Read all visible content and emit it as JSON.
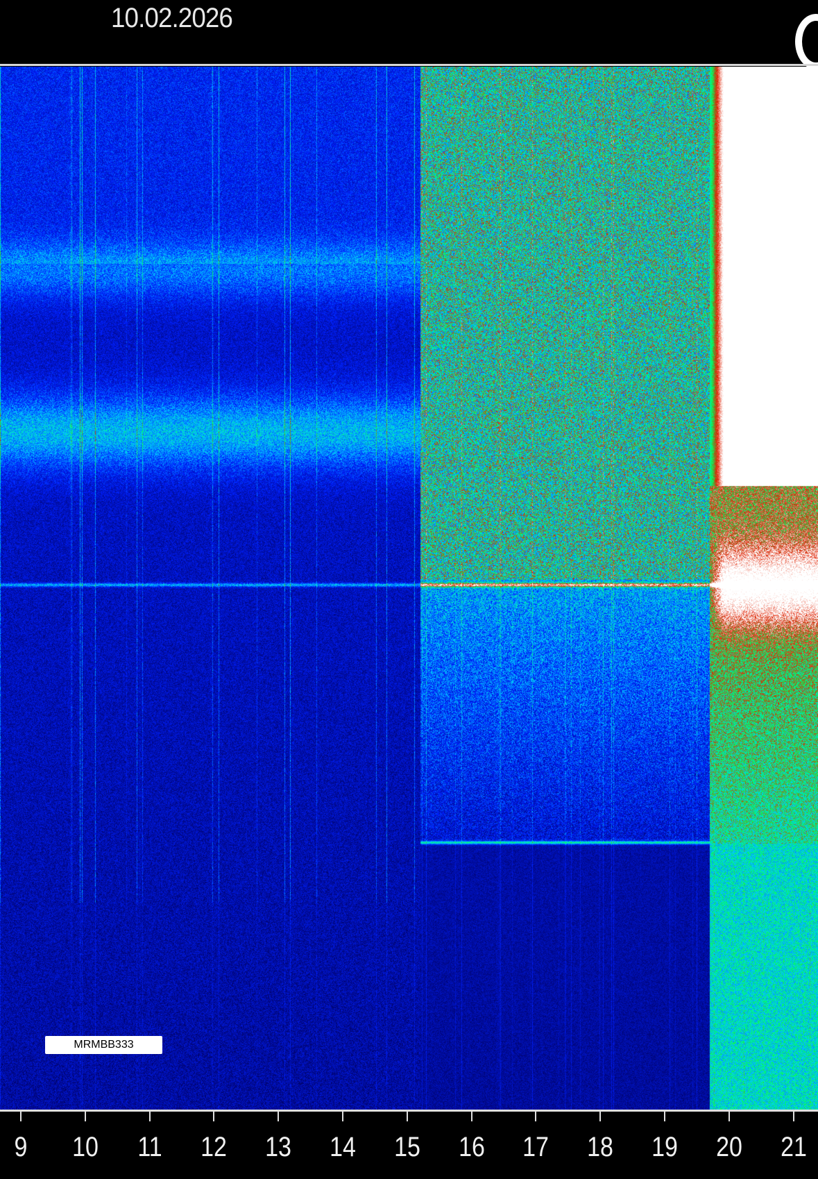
{
  "chart_data": {
    "type": "heatmap",
    "title": "10.02.2026",
    "xlabel": "",
    "ylabel": "",
    "x_tick_labels": [
      "9",
      "10",
      "11",
      "12",
      "13",
      "14",
      "15",
      "16",
      "17",
      "18",
      "19",
      "20",
      "21"
    ],
    "x_unit_hint": "hour",
    "colormap": [
      "#000060",
      "#0020ff",
      "#00c8ff",
      "#00ff60",
      "#e02000",
      "#ffffff"
    ],
    "regions": [
      {
        "x_from": 8.7,
        "x_to": 15.2,
        "level": "low",
        "note": "blue background with green bands"
      },
      {
        "x_from": 15.2,
        "x_to": 19.7,
        "level": "elevated"
      },
      {
        "x_from": 19.7,
        "x_to": 21.4,
        "level": "saturated"
      }
    ],
    "station_label": "MRMBB333"
  }
}
